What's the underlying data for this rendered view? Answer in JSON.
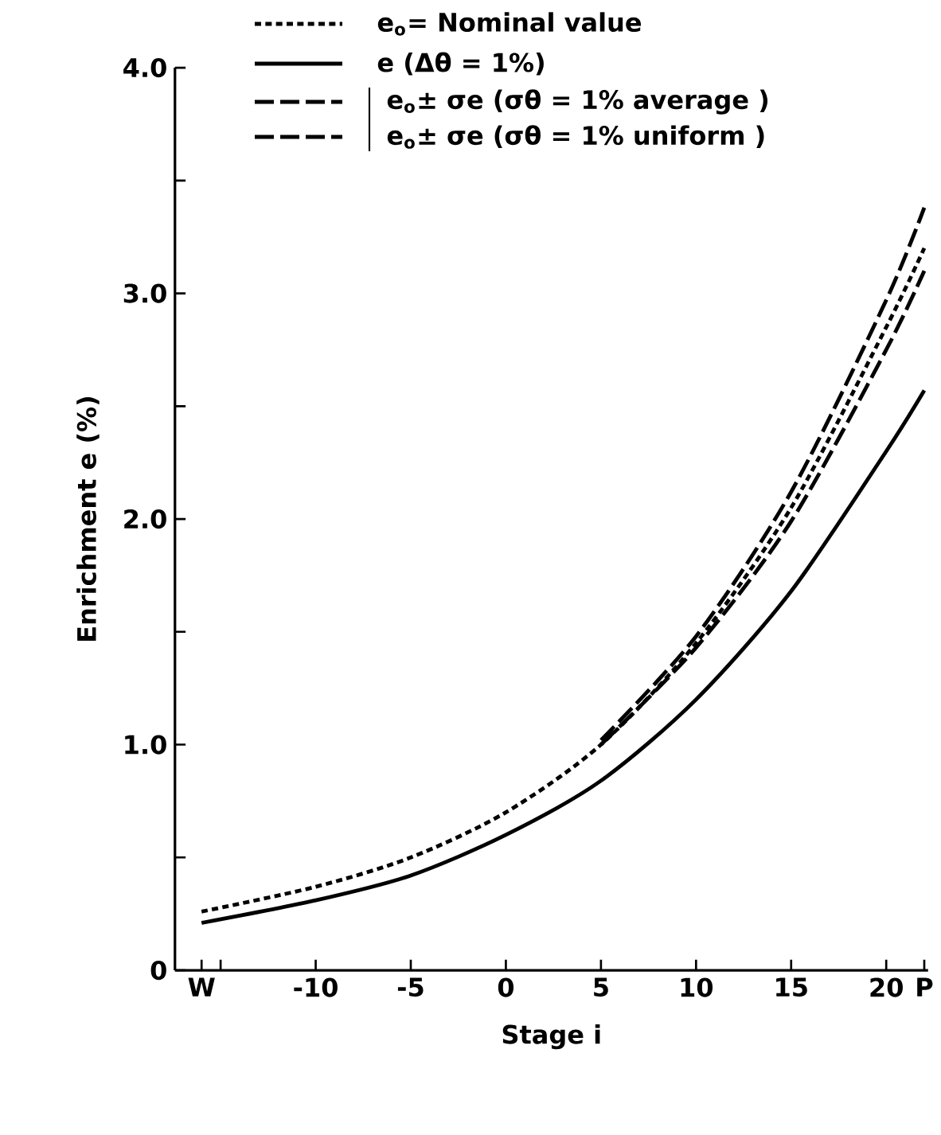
{
  "chart_data": {
    "type": "line",
    "xlabel": "Stage i",
    "ylabel": "Enrichment e (%)",
    "xlim": [
      -17.4,
      22.2
    ],
    "ylim": [
      0,
      4.0
    ],
    "xticks": [
      {
        "value": -16,
        "label": "W"
      },
      {
        "value": -15,
        "label": null
      },
      -10,
      -5,
      0,
      5,
      10,
      15,
      20,
      {
        "value": 22,
        "label": "P"
      }
    ],
    "yticks": [
      0,
      {
        "value": 0.5,
        "label": null
      },
      {
        "value": 1,
        "label": "1.0"
      },
      {
        "value": 1.5,
        "label": null
      },
      {
        "value": 2,
        "label": "2.0"
      },
      {
        "value": 2.5,
        "label": null
      },
      {
        "value": 3,
        "label": "3.0"
      },
      {
        "value": 3.5,
        "label": null
      },
      {
        "value": 4,
        "label": "4.0"
      }
    ],
    "legend": "top",
    "grid": false,
    "marker": "none",
    "series": [
      {
        "name": "e$_{o}$= Nominal value",
        "color": "#000000",
        "line_style": "dotted",
        "x": [
          -16,
          -10,
          -5,
          0,
          5,
          10,
          15,
          20,
          22
        ],
        "values": [
          0.26,
          0.37,
          0.5,
          0.7,
          1.0,
          1.45,
          2.05,
          2.85,
          3.2
        ]
      },
      {
        "name": "e (Δθ = 1%)",
        "color": "#000000",
        "line_style": "solid",
        "x": [
          -16,
          -10,
          -5,
          0,
          5,
          10,
          15,
          20,
          22
        ],
        "values": [
          0.21,
          0.31,
          0.42,
          0.6,
          0.84,
          1.2,
          1.68,
          2.3,
          2.57
        ]
      },
      {
        "name": "e$_{o}$± σe (σθ = 1% average )",
        "color": "#000000",
        "line_style": "dashed",
        "x": [
          5,
          10,
          15,
          20,
          22
        ],
        "values": [
          1.02,
          1.48,
          2.12,
          2.97,
          3.38
        ]
      },
      {
        "name": "e$_{o}$± σe (σθ = 1% uniform )",
        "color": "#000000",
        "line_style": "dashed",
        "x": [
          5,
          10,
          15,
          20,
          22
        ],
        "values": [
          1.0,
          1.43,
          1.99,
          2.75,
          3.1
        ]
      }
    ]
  }
}
